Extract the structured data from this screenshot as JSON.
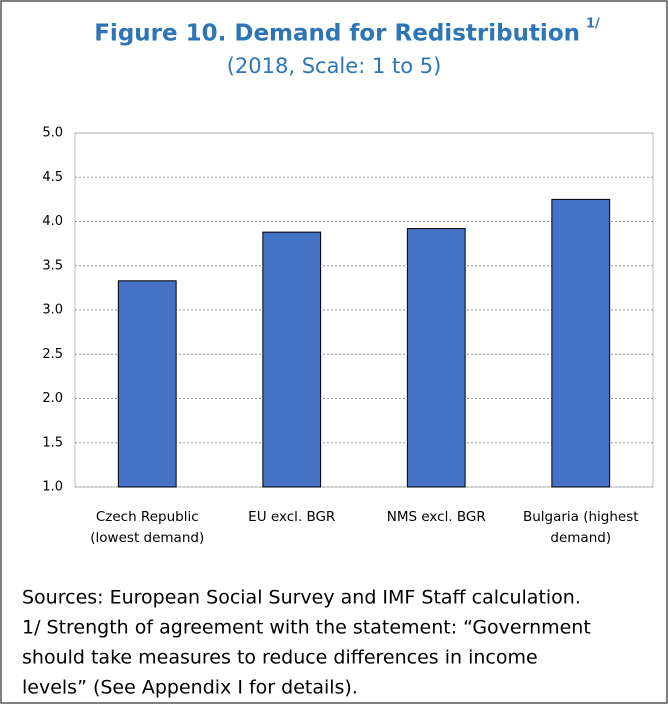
{
  "chart_data": {
    "type": "bar",
    "title": "Figure 10. Demand for Redistribution",
    "title_superscript": "1/",
    "subtitle": "(2018, Scale: 1 to 5)",
    "categories": [
      [
        "Czech Republic",
        "(lowest demand)"
      ],
      [
        "EU excl. BGR"
      ],
      [
        "NMS excl. BGR"
      ],
      [
        "Bulgaria (highest",
        "demand)"
      ]
    ],
    "values": [
      3.33,
      3.88,
      3.92,
      4.25
    ],
    "color": "#4472c4",
    "ylim": [
      1,
      5
    ],
    "yticks": [
      {
        "value": 1,
        "label": "1.0"
      },
      1.5,
      {
        "value": 2,
        "label": "2.0"
      },
      2.5,
      {
        "value": 3,
        "label": "3.0"
      },
      3.5,
      {
        "value": 4,
        "label": "4.0"
      },
      4.5,
      {
        "value": 5,
        "label": "5.0"
      }
    ],
    "grid": true,
    "notes": [
      "Sources: European Social Survey and IMF Staff calculation.",
      "1/ Strength of agreement with the statement: “Government",
      "should take measures to reduce differences in income",
      "levels” (See Appendix I for details)."
    ]
  }
}
